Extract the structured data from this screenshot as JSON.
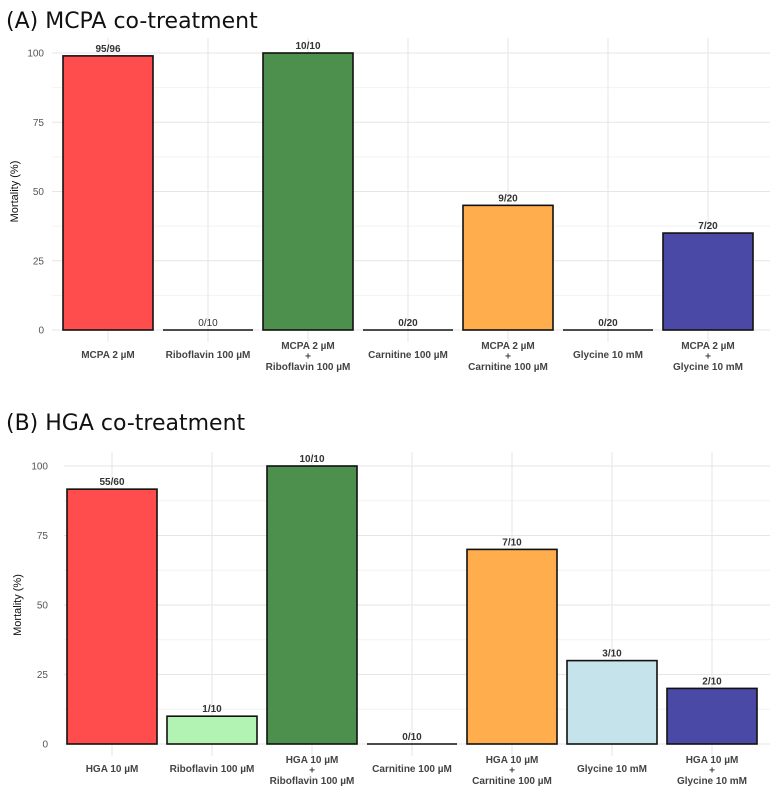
{
  "chart_data": [
    {
      "type": "bar",
      "title": "(A) MCPA co-treatment",
      "ylabel": "Mortality (%)",
      "xlabel": "",
      "ylim": [
        0,
        100
      ],
      "yticks": [
        "0",
        "25",
        "50",
        "75",
        "100"
      ],
      "grid": true,
      "categories": [
        [
          "MCPA 2 µM"
        ],
        [
          "Riboflavin 100 µM"
        ],
        [
          "MCPA 2 µM",
          "+",
          "Riboflavin 100 µM"
        ],
        [
          "Carnitine 100 µM"
        ],
        [
          "MCPA 2 µM",
          "+",
          "Carnitine 100 µM"
        ],
        [
          "Glycine 10 mM"
        ],
        [
          "MCPA 2 µM",
          "+",
          "Glycine 10 mM"
        ]
      ],
      "values": [
        98.96,
        0,
        100,
        0,
        45,
        0,
        35
      ],
      "data_labels": [
        "95/96",
        "0/10",
        "10/10",
        "0/20",
        "9/20",
        "0/20",
        "7/20"
      ],
      "colors": [
        "#ff4d4d",
        "#ffffff",
        "#4d8f4d",
        "#ffffff",
        "#ffad4d",
        "#ffffff",
        "#4a4aa6"
      ]
    },
    {
      "type": "bar",
      "title": "(B) HGA co-treatment",
      "ylabel": "Mortality (%)",
      "xlabel": "",
      "ylim": [
        0,
        100
      ],
      "yticks": [
        "0",
        "25",
        "50",
        "75",
        "100"
      ],
      "grid": true,
      "categories": [
        [
          "HGA 10 µM"
        ],
        [
          "Riboflavin 100 µM"
        ],
        [
          "HGA 10 µM",
          "+",
          "Riboflavin 100 µM"
        ],
        [
          "Carnitine 100 µM"
        ],
        [
          "HGA 10 µM",
          "+",
          "Carnitine 100 µM"
        ],
        [
          "Glycine 10 mM"
        ],
        [
          "HGA 10 µM",
          "+",
          "Glycine 10 mM"
        ]
      ],
      "values": [
        91.67,
        10,
        100,
        0,
        70,
        30,
        20
      ],
      "data_labels": [
        "55/60",
        "1/10",
        "10/10",
        "0/10",
        "7/10",
        "3/10",
        "2/10"
      ],
      "colors": [
        "#ff4d4d",
        "#b2f2b2",
        "#4d8f4d",
        "#ffffff",
        "#ffad4d",
        "#c5e3ea",
        "#4a4aa6"
      ]
    }
  ]
}
